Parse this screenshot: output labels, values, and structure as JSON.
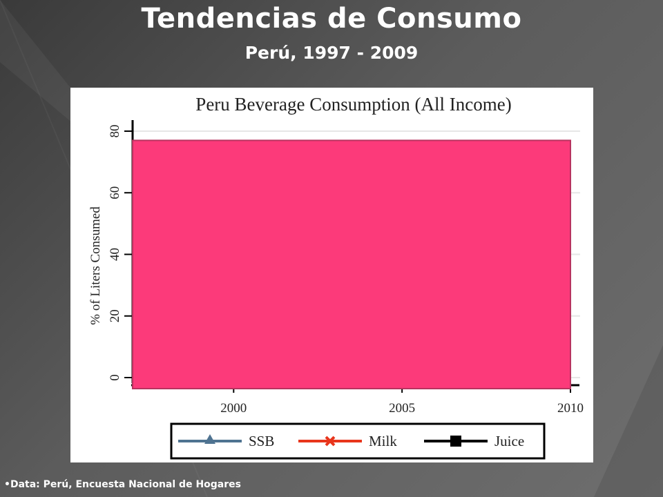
{
  "slide": {
    "title": "Tendencias de Consumo",
    "subtitle": "Perú, 1997 - 2009",
    "footnote": "•Data: Perú, Encuesta Nacional de Hogares"
  },
  "chart_data": {
    "type": "area",
    "title": "Peru Beverage Consumption (All Income)",
    "xlabel": "",
    "ylabel": "% of Liters Consumed",
    "x_ticks": [
      2000,
      2005,
      2010
    ],
    "y_ticks": [
      0,
      20,
      40,
      60,
      80
    ],
    "xlim": [
      1997,
      2010
    ],
    "ylim": [
      0,
      80
    ],
    "grid": true,
    "legend_position": "bottom",
    "series": [
      {
        "name": "SSB",
        "marker": "triangle",
        "color": "#4f7391"
      },
      {
        "name": "Milk",
        "marker": "x",
        "color": "#e8351c"
      },
      {
        "name": "Juice",
        "marker": "square",
        "color": "#000000"
      }
    ],
    "covering_block": {
      "x_start": 1997,
      "x_end": 2010,
      "y_top": 77,
      "color": "#fc3a7a",
      "border": "#b8335f"
    }
  }
}
